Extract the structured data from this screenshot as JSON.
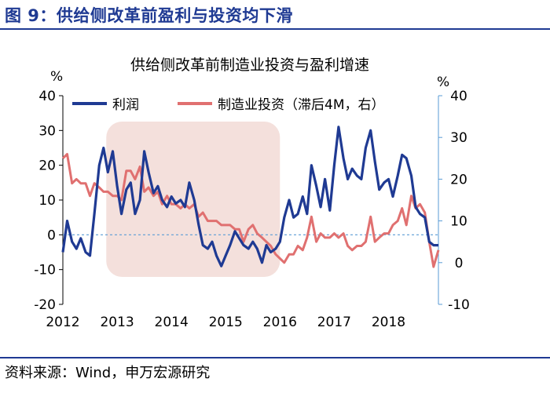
{
  "figure_title": "图 9：供给侧改革前盈利与投资均下滑",
  "source": "资料来源：Wind，申万宏源研究",
  "colors": {
    "profit": "#1f3a93",
    "investment": "#e07070",
    "highlight": "#f4e0dc",
    "right_axis": "#5a9bd5",
    "title": "#1f3a93"
  },
  "chart_data": {
    "type": "line",
    "title": "供给侧改革前制造业投资与盈利增速",
    "left_unit": "%",
    "right_unit": "%",
    "left_ylim": [
      -20,
      40
    ],
    "right_ylim": [
      -10,
      40
    ],
    "left_ticks": [
      "40",
      "30",
      "20",
      "10",
      "0",
      "-10",
      "-20"
    ],
    "right_ticks": [
      "40",
      "30",
      "20",
      "10",
      "0",
      "-10"
    ],
    "x_ticks": [
      "2012",
      "2013",
      "2014",
      "2015",
      "2016",
      "2017",
      "2018"
    ],
    "xlim": [
      2012.0,
      2018.92
    ],
    "highlight_range": [
      2012.8,
      2016.0
    ],
    "series": [
      {
        "name": "利润",
        "axis": "left",
        "points": [
          [
            2012.0,
            -5
          ],
          [
            2012.08,
            4
          ],
          [
            2012.17,
            -2
          ],
          [
            2012.25,
            -4
          ],
          [
            2012.33,
            -1
          ],
          [
            2012.42,
            -5
          ],
          [
            2012.5,
            -6
          ],
          [
            2012.58,
            6
          ],
          [
            2012.67,
            20
          ],
          [
            2012.75,
            25
          ],
          [
            2012.83,
            18
          ],
          [
            2012.92,
            24
          ],
          [
            2013.0,
            14
          ],
          [
            2013.08,
            6
          ],
          [
            2013.17,
            13
          ],
          [
            2013.25,
            15
          ],
          [
            2013.33,
            6
          ],
          [
            2013.42,
            10
          ],
          [
            2013.5,
            24
          ],
          [
            2013.58,
            18
          ],
          [
            2013.67,
            12
          ],
          [
            2013.75,
            14
          ],
          [
            2013.83,
            10
          ],
          [
            2013.92,
            8
          ],
          [
            2014.0,
            11
          ],
          [
            2014.08,
            9
          ],
          [
            2014.17,
            10
          ],
          [
            2014.25,
            8
          ],
          [
            2014.33,
            15
          ],
          [
            2014.42,
            10
          ],
          [
            2014.5,
            3
          ],
          [
            2014.58,
            -3
          ],
          [
            2014.67,
            -4
          ],
          [
            2014.75,
            -2
          ],
          [
            2014.83,
            -6
          ],
          [
            2014.92,
            -9
          ],
          [
            2015.0,
            -6
          ],
          [
            2015.08,
            -3
          ],
          [
            2015.17,
            1
          ],
          [
            2015.25,
            -1
          ],
          [
            2015.33,
            -3
          ],
          [
            2015.42,
            -4
          ],
          [
            2015.5,
            -2
          ],
          [
            2015.58,
            -4
          ],
          [
            2015.67,
            -8
          ],
          [
            2015.75,
            -3
          ],
          [
            2015.83,
            -5
          ],
          [
            2015.92,
            -4
          ],
          [
            2016.0,
            -2
          ],
          [
            2016.08,
            5
          ],
          [
            2016.17,
            10
          ],
          [
            2016.25,
            5
          ],
          [
            2016.33,
            6
          ],
          [
            2016.42,
            11
          ],
          [
            2016.5,
            6
          ],
          [
            2016.58,
            20
          ],
          [
            2016.67,
            14
          ],
          [
            2016.75,
            8
          ],
          [
            2016.83,
            16
          ],
          [
            2016.92,
            7
          ],
          [
            2017.0,
            20
          ],
          [
            2017.08,
            31
          ],
          [
            2017.17,
            22
          ],
          [
            2017.25,
            16
          ],
          [
            2017.33,
            19
          ],
          [
            2017.42,
            17
          ],
          [
            2017.5,
            16
          ],
          [
            2017.58,
            25
          ],
          [
            2017.67,
            30
          ],
          [
            2017.75,
            21
          ],
          [
            2017.83,
            13
          ],
          [
            2017.92,
            15
          ],
          [
            2018.0,
            16
          ],
          [
            2018.08,
            11
          ],
          [
            2018.17,
            17
          ],
          [
            2018.25,
            23
          ],
          [
            2018.33,
            22
          ],
          [
            2018.42,
            17
          ],
          [
            2018.5,
            8
          ],
          [
            2018.58,
            6
          ],
          [
            2018.67,
            5
          ],
          [
            2018.75,
            -2
          ],
          [
            2018.83,
            -3
          ],
          [
            2018.92,
            -3
          ]
        ]
      },
      {
        "name": "制造业投资（滞后4M，右）",
        "axis": "right",
        "points": [
          [
            2012.0,
            25
          ],
          [
            2012.08,
            26
          ],
          [
            2012.17,
            19
          ],
          [
            2012.25,
            20
          ],
          [
            2012.33,
            19
          ],
          [
            2012.42,
            19
          ],
          [
            2012.5,
            16
          ],
          [
            2012.58,
            19
          ],
          [
            2012.67,
            18
          ],
          [
            2012.75,
            17
          ],
          [
            2012.83,
            17
          ],
          [
            2012.92,
            16
          ],
          [
            2013.0,
            16
          ],
          [
            2013.08,
            15
          ],
          [
            2013.17,
            22
          ],
          [
            2013.25,
            22
          ],
          [
            2013.33,
            20
          ],
          [
            2013.42,
            23
          ],
          [
            2013.5,
            17
          ],
          [
            2013.58,
            18
          ],
          [
            2013.67,
            16
          ],
          [
            2013.75,
            17
          ],
          [
            2013.83,
            14
          ],
          [
            2013.92,
            16
          ],
          [
            2014.0,
            14
          ],
          [
            2014.08,
            14
          ],
          [
            2014.17,
            13
          ],
          [
            2014.25,
            14
          ],
          [
            2014.33,
            13
          ],
          [
            2014.42,
            14
          ],
          [
            2014.5,
            11
          ],
          [
            2014.58,
            12
          ],
          [
            2014.67,
            10
          ],
          [
            2014.75,
            10
          ],
          [
            2014.83,
            10
          ],
          [
            2014.92,
            9
          ],
          [
            2015.0,
            9
          ],
          [
            2015.08,
            9
          ],
          [
            2015.17,
            8
          ],
          [
            2015.25,
            8
          ],
          [
            2015.33,
            5
          ],
          [
            2015.42,
            8
          ],
          [
            2015.5,
            9
          ],
          [
            2015.58,
            7
          ],
          [
            2015.67,
            6
          ],
          [
            2015.75,
            5
          ],
          [
            2015.83,
            4
          ],
          [
            2015.92,
            2
          ],
          [
            2016.0,
            1
          ],
          [
            2016.08,
            0
          ],
          [
            2016.17,
            2
          ],
          [
            2016.25,
            2
          ],
          [
            2016.33,
            4
          ],
          [
            2016.42,
            3
          ],
          [
            2016.5,
            6
          ],
          [
            2016.58,
            11
          ],
          [
            2016.67,
            5
          ],
          [
            2016.75,
            7
          ],
          [
            2016.83,
            6
          ],
          [
            2016.92,
            6
          ],
          [
            2017.0,
            7
          ],
          [
            2017.08,
            6
          ],
          [
            2017.17,
            7
          ],
          [
            2017.25,
            4
          ],
          [
            2017.33,
            3
          ],
          [
            2017.42,
            4
          ],
          [
            2017.5,
            4
          ],
          [
            2017.58,
            5
          ],
          [
            2017.67,
            11
          ],
          [
            2017.75,
            5
          ],
          [
            2017.83,
            6
          ],
          [
            2017.92,
            7
          ],
          [
            2018.0,
            7
          ],
          [
            2018.08,
            9
          ],
          [
            2018.17,
            10
          ],
          [
            2018.25,
            13
          ],
          [
            2018.33,
            9
          ],
          [
            2018.42,
            16
          ],
          [
            2018.5,
            13
          ],
          [
            2018.58,
            14
          ],
          [
            2018.67,
            12
          ],
          [
            2018.75,
            5
          ],
          [
            2018.83,
            -1
          ],
          [
            2018.92,
            3
          ]
        ]
      }
    ]
  }
}
